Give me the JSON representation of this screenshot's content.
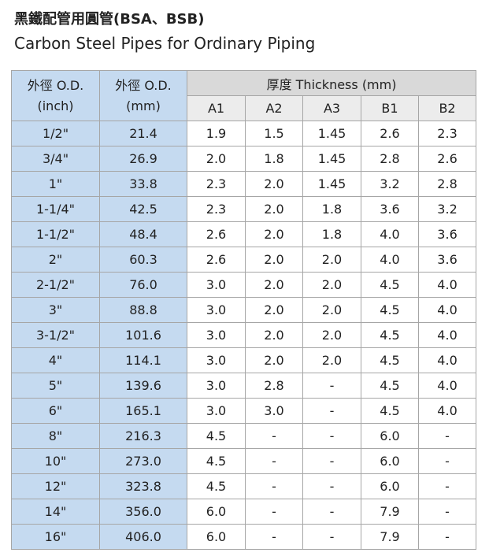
{
  "header": {
    "title": "黑鐵配管用圓管(BSA、BSB)",
    "subtitle": "Carbon Steel Pipes for Ordinary Piping"
  },
  "table": {
    "headers": {
      "od_inch": [
        "外徑 O.D.",
        "(inch)"
      ],
      "od_mm": [
        "外徑 O.D.",
        "(mm)"
      ],
      "thickness": "厚度 Thickness (mm)",
      "grades": [
        "A1",
        "A2",
        "A3",
        "B1",
        "B2"
      ]
    },
    "rows": [
      [
        "1/2\"",
        "21.4",
        "1.9",
        "1.5",
        "1.45",
        "2.6",
        "2.3"
      ],
      [
        "3/4\"",
        "26.9",
        "2.0",
        "1.8",
        "1.45",
        "2.8",
        "2.6"
      ],
      [
        "1\"",
        "33.8",
        "2.3",
        "2.0",
        "1.45",
        "3.2",
        "2.8"
      ],
      [
        "1-1/4\"",
        "42.5",
        "2.3",
        "2.0",
        "1.8",
        "3.6",
        "3.2"
      ],
      [
        "1-1/2\"",
        "48.4",
        "2.6",
        "2.0",
        "1.8",
        "4.0",
        "3.6"
      ],
      [
        "2\"",
        "60.3",
        "2.6",
        "2.0",
        "2.0",
        "4.0",
        "3.6"
      ],
      [
        "2-1/2\"",
        "76.0",
        "3.0",
        "2.0",
        "2.0",
        "4.5",
        "4.0"
      ],
      [
        "3\"",
        "88.8",
        "3.0",
        "2.0",
        "2.0",
        "4.5",
        "4.0"
      ],
      [
        "3-1/2\"",
        "101.6",
        "3.0",
        "2.0",
        "2.0",
        "4.5",
        "4.0"
      ],
      [
        "4\"",
        "114.1",
        "3.0",
        "2.0",
        "2.0",
        "4.5",
        "4.0"
      ],
      [
        "5\"",
        "139.6",
        "3.0",
        "2.8",
        "-",
        "4.5",
        "4.0"
      ],
      [
        "6\"",
        "165.1",
        "3.0",
        "3.0",
        "-",
        "4.5",
        "4.0"
      ],
      [
        "8\"",
        "216.3",
        "4.5",
        "-",
        "-",
        "6.0",
        "-"
      ],
      [
        "10\"",
        "273.0",
        "4.5",
        "-",
        "-",
        "6.0",
        "-"
      ],
      [
        "12\"",
        "323.8",
        "4.5",
        "-",
        "-",
        "6.0",
        "-"
      ],
      [
        "14\"",
        "356.0",
        "6.0",
        "-",
        "-",
        "7.9",
        "-"
      ],
      [
        "16\"",
        "406.0",
        "6.0",
        "-",
        "-",
        "7.9",
        "-"
      ]
    ]
  }
}
